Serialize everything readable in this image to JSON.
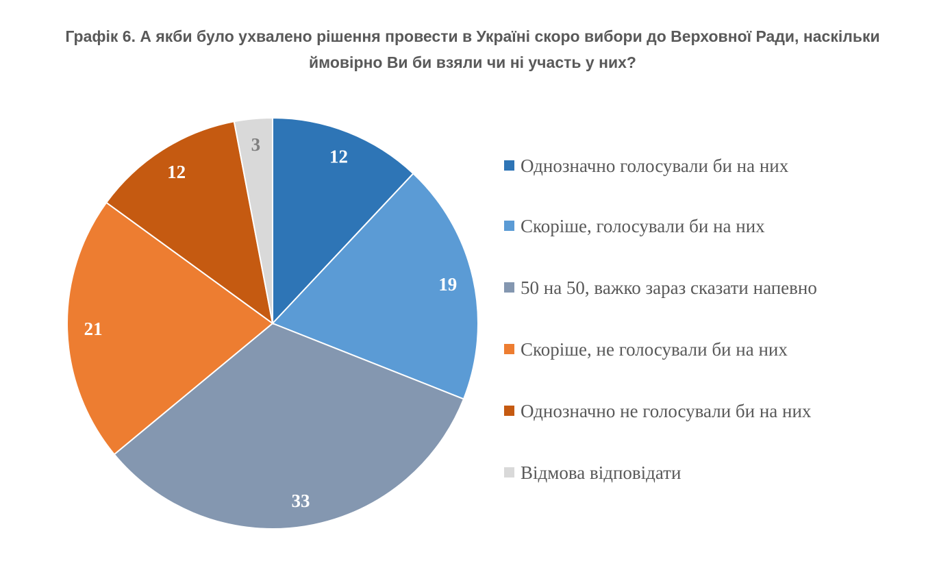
{
  "chart_data": {
    "type": "pie",
    "title": "Графік 6. А якби було ухвалено рішення провести в Україні скоро вибори до Верховної Ради, наскільки ймовірно Ви би взяли чи ні участь у них?",
    "categories": [
      "Однозначно голосували би на них",
      "Скоріше, голосували би на них",
      "50 на 50, важко зараз сказати напевно",
      "Скоріше, не голосували би на них",
      "Однозначно не голосували би на них",
      "Відмова відповідати"
    ],
    "values": [
      12,
      19,
      33,
      21,
      12,
      3
    ],
    "data_labels": [
      "12",
      "19",
      "33",
      "21",
      "12",
      "3"
    ],
    "colors": [
      "#2E75B6",
      "#5B9BD5",
      "#8497B0",
      "#ED7D31",
      "#C55A11",
      "#D9D9D9"
    ],
    "label_colors": [
      "#ffffff",
      "#ffffff",
      "#ffffff",
      "#ffffff",
      "#ffffff",
      "#7f7f7f"
    ],
    "legend_position": "right",
    "start_angle": "top, clockwise"
  }
}
